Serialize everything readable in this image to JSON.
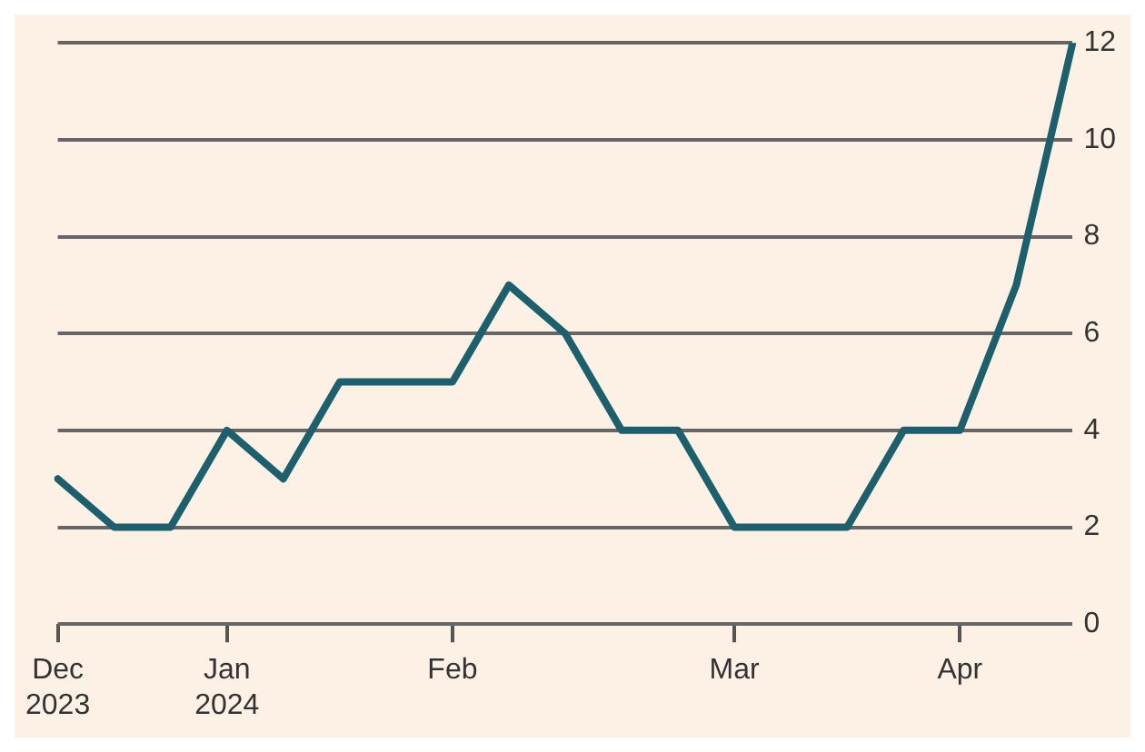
{
  "chart_data": {
    "type": "line",
    "categories": [
      "Dec\n2023",
      null,
      null,
      "Jan\n2024",
      null,
      null,
      null,
      "Feb",
      null,
      null,
      null,
      null,
      "Mar",
      null,
      null,
      null,
      "Apr",
      null,
      null
    ],
    "series": [
      {
        "color": "#1d5f6c",
        "values": [
          3,
          2,
          2,
          4,
          3,
          5,
          5,
          5,
          7,
          6,
          4,
          4,
          2,
          2,
          2,
          4,
          4,
          7,
          12
        ]
      }
    ],
    "ylim": [
      0,
      12
    ],
    "yticks": [
      0,
      2,
      4,
      6,
      8,
      10,
      12
    ],
    "grid": "y",
    "legend": false,
    "marker": "none",
    "line_style": "solid"
  }
}
